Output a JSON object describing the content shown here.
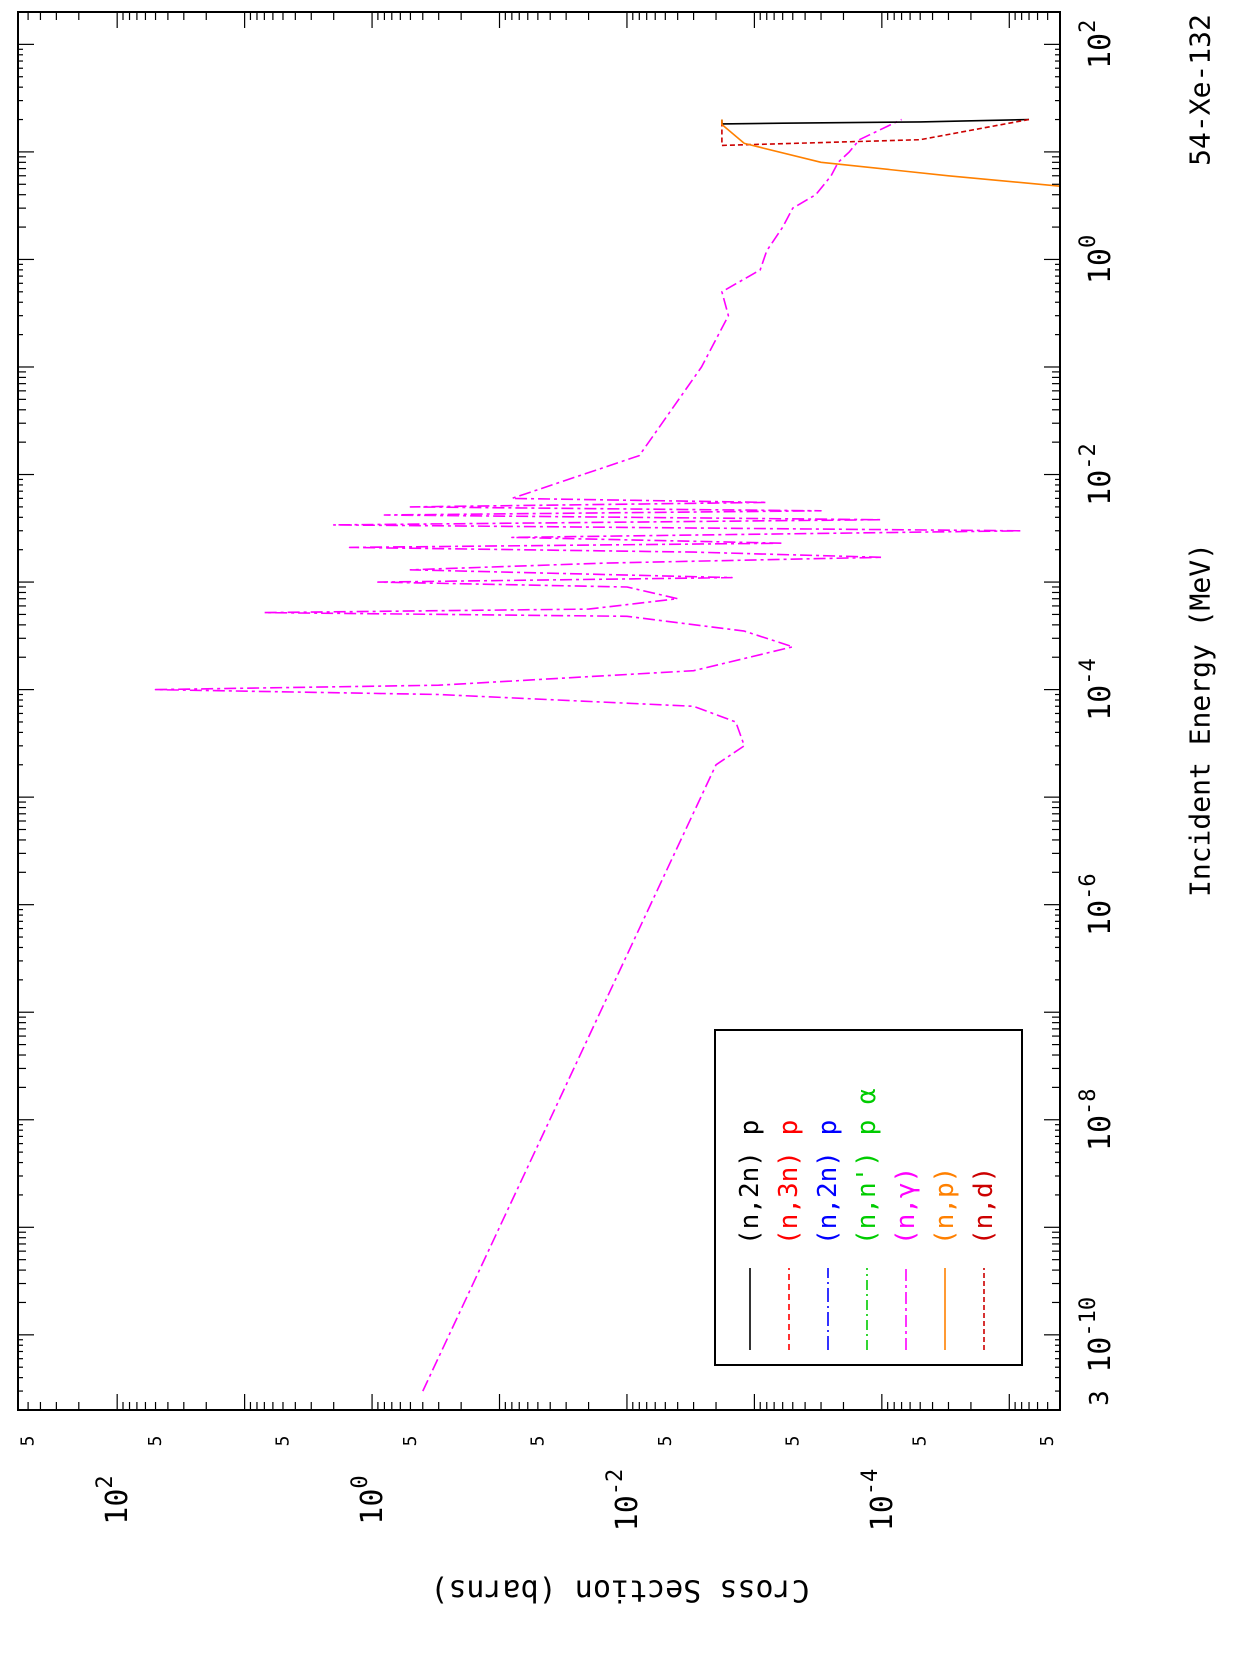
{
  "chart_data": {
    "type": "line",
    "orientation": "rotated-90-clockwise",
    "title": "54-Xe-132",
    "xlabel": "Incident Energy (MeV)",
    "ylabel": "Cross Section (barns)",
    "x_scale": "log",
    "y_scale": "log",
    "xlim": [
      2e-11,
      200
    ],
    "ylim": [
      4e-06,
      600
    ],
    "x_ticks": [
      {
        "value": 1e-10,
        "base": "10",
        "exp": "-10"
      },
      {
        "value": 1e-08,
        "base": "10",
        "exp": "-8"
      },
      {
        "value": 1e-06,
        "base": "10",
        "exp": "-6"
      },
      {
        "value": 0.0001,
        "base": "10",
        "exp": "-4"
      },
      {
        "value": 0.01,
        "base": "10",
        "exp": "-2"
      },
      {
        "value": 1,
        "base": "10",
        "exp": "0"
      },
      {
        "value": 100,
        "base": "10",
        "exp": "2"
      }
    ],
    "x_edge_label": "3",
    "y_ticks": [
      {
        "value": 100,
        "base": "10",
        "exp": "2"
      },
      {
        "value": 1,
        "base": "10",
        "exp": "0"
      },
      {
        "value": 0.01,
        "base": "10",
        "exp": "-2"
      },
      {
        "value": 0.0001,
        "base": "10",
        "exp": "-4"
      }
    ],
    "y_minor_labels": [
      {
        "value": 500,
        "label": "5"
      },
      {
        "value": 5,
        "label": "5"
      },
      {
        "value": 0.05,
        "label": "5"
      },
      {
        "value": 0.0005,
        "label": "5"
      },
      {
        "value": 5e-06,
        "label": "5"
      }
    ],
    "y_half_labels": [
      {
        "value": 50,
        "label": "5"
      },
      {
        "value": 0.5,
        "label": "5"
      },
      {
        "value": 0.005,
        "label": "5"
      },
      {
        "value": 5e-05,
        "label": "5"
      }
    ],
    "grid": false,
    "legend_position": "bottom-right (rotated view)",
    "legend": [
      {
        "reaction": "(n,2n)",
        "threshold": "p",
        "extra": "",
        "color": "#000000",
        "dash": ""
      },
      {
        "reaction": "(n,3n)",
        "threshold": "p",
        "extra": "",
        "color": "#ff0000",
        "dash": "6,4"
      },
      {
        "reaction": "(n,2n)",
        "threshold": "p",
        "extra": "",
        "color": "#0000ff",
        "dash": "14,4,2,4"
      },
      {
        "reaction": "(n,n')",
        "threshold": "p",
        "extra": "α",
        "color": "#00cc00",
        "dash": "10,4,2,4"
      },
      {
        "reaction": "(n,γ)",
        "threshold": "",
        "extra": "",
        "color": "#ff00ff",
        "dash": "12,4,3,4"
      },
      {
        "reaction": "(n,p)",
        "threshold": "",
        "extra": "",
        "color": "#ff8000",
        "dash": ""
      },
      {
        "reaction": "(n,d)",
        "threshold": "",
        "extra": "",
        "color": "#cc0000",
        "dash": "5,3"
      }
    ],
    "series": [
      {
        "name": "(n,γ)",
        "color": "#ff00ff",
        "dash": "12,4,3,4",
        "points": [
          [
            3e-11,
            0.4
          ],
          [
            2e-05,
            0.002
          ],
          [
            3e-05,
            0.0012
          ],
          [
            5e-05,
            0.0014
          ],
          [
            7e-05,
            0.003
          ],
          [
            9e-05,
            0.3
          ],
          [
            0.0001,
            50
          ],
          [
            0.00011,
            0.3
          ],
          [
            0.00015,
            0.003
          ],
          [
            0.00025,
            0.0005
          ],
          [
            0.00035,
            0.0012
          ],
          [
            0.00048,
            0.01
          ],
          [
            0.00052,
            7
          ],
          [
            0.00056,
            0.02
          ],
          [
            0.0007,
            0.004
          ],
          [
            0.0009,
            0.01
          ],
          [
            0.001,
            0.9
          ],
          [
            0.0011,
            0.0015
          ],
          [
            0.0013,
            0.5
          ],
          [
            0.0015,
            0.015
          ],
          [
            0.0017,
            0.0001
          ],
          [
            0.0019,
            0.003
          ],
          [
            0.0021,
            1.5
          ],
          [
            0.0023,
            0.0006
          ],
          [
            0.0026,
            0.08
          ],
          [
            0.003,
            8e-06
          ],
          [
            0.0034,
            2
          ],
          [
            0.0038,
            0.0001
          ],
          [
            0.0042,
            0.8
          ],
          [
            0.0046,
            0.0003
          ],
          [
            0.005,
            0.5
          ],
          [
            0.0055,
            0.0008
          ],
          [
            0.006,
            0.08
          ],
          [
            0.015,
            0.008
          ],
          [
            0.1,
            0.0026
          ],
          [
            0.3,
            0.0016
          ],
          [
            0.5,
            0.0018
          ],
          [
            0.8,
            0.0009
          ],
          [
            1.2,
            0.0008
          ],
          [
            2,
            0.0006
          ],
          [
            3,
            0.0005
          ],
          [
            4,
            0.00033
          ],
          [
            6,
            0.00025
          ],
          [
            8,
            0.00022
          ],
          [
            10,
            0.00018
          ],
          [
            13,
            0.00015
          ],
          [
            20,
            7e-05
          ]
        ]
      },
      {
        "name": "(n,2n)",
        "color": "#000000",
        "dash": "",
        "points": [
          [
            20,
            7e-06
          ],
          [
            19,
            5e-05
          ],
          [
            18.5,
            0.0006
          ],
          [
            18.2,
            0.0018
          ],
          [
            20,
            0.0018
          ]
        ]
      },
      {
        "name": "(n,d)",
        "color": "#cc0000",
        "dash": "5,3",
        "points": [
          [
            20,
            7e-06
          ],
          [
            13,
            5e-05
          ],
          [
            12,
            0.0005
          ],
          [
            11.5,
            0.0018
          ],
          [
            20,
            0.0018
          ]
        ]
      },
      {
        "name": "(n,p)",
        "color": "#ff8000",
        "dash": "",
        "points": [
          [
            4.8,
            4e-06
          ],
          [
            6,
            3e-05
          ],
          [
            8,
            0.0003
          ],
          [
            12,
            0.0012
          ],
          [
            18,
            0.0018
          ],
          [
            20,
            0.0018
          ]
        ]
      }
    ]
  }
}
